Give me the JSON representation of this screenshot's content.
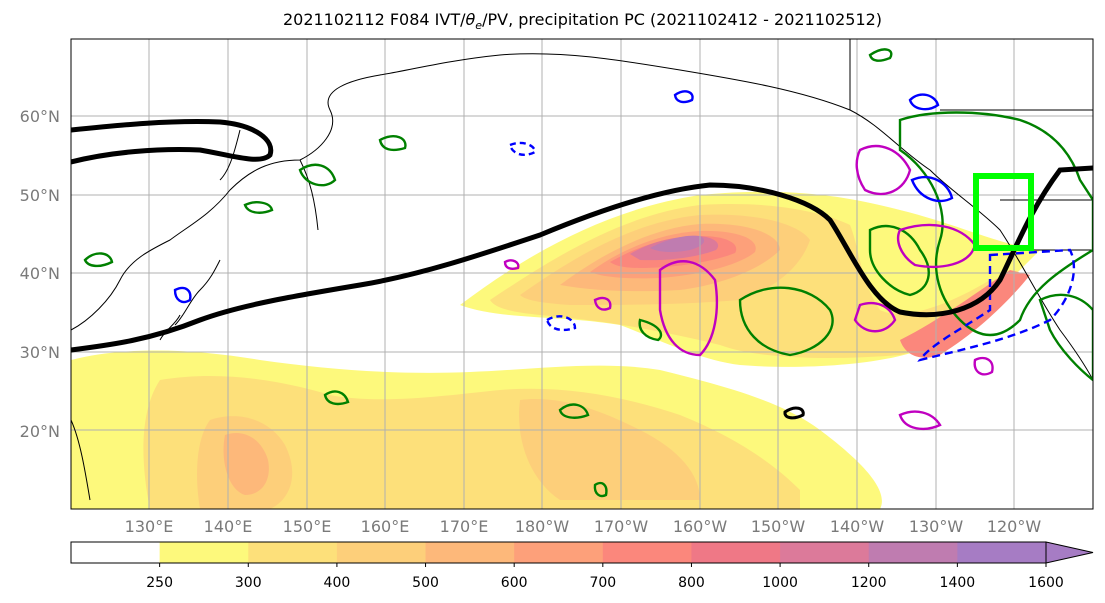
{
  "title": {
    "text_before": "2021102112 F084 IVT/",
    "theta": "θ",
    "theta_sub": "e",
    "text_after": "/PV, precipitation PC (2021102412 - 2021102512)"
  },
  "colors": {
    "contour_black": "#000000",
    "contour_green": "#008000",
    "contour_blue": "#0000ff",
    "contour_magenta": "#c000c0",
    "box_lime": "#00ff00",
    "grid": "#b0b0b0"
  },
  "map": {
    "projection": "PlateCarree",
    "lon_range": [
      120,
      250
    ],
    "lat_range": [
      10,
      70
    ],
    "gridlines": true,
    "lat_labels": [
      "20°N",
      "30°N",
      "40°N",
      "50°N",
      "60°N"
    ],
    "lon_labels": [
      "130°E",
      "140°E",
      "150°E",
      "160°E",
      "170°E",
      "180°W",
      "170°W",
      "160°W",
      "150°W",
      "140°W",
      "130°W",
      "120°W"
    ]
  },
  "colorbar": {
    "levels": [
      250,
      300,
      400,
      500,
      600,
      700,
      800,
      1000,
      1200,
      1400,
      1600
    ],
    "colors": [
      "#ffffff",
      "#fdf97c",
      "#fde07a",
      "#fdcf7a",
      "#fdb87a",
      "#fda07a",
      "#fb877c",
      "#ef7886",
      "#dc7a9a",
      "#bf7cb0",
      "#a67cc4"
    ],
    "extend": "max"
  },
  "chart_data": {
    "type": "heatmap",
    "variable": "IVT",
    "region_box": {
      "lon": [
        235,
        242
      ],
      "lat": [
        43,
        52
      ]
    }
  }
}
